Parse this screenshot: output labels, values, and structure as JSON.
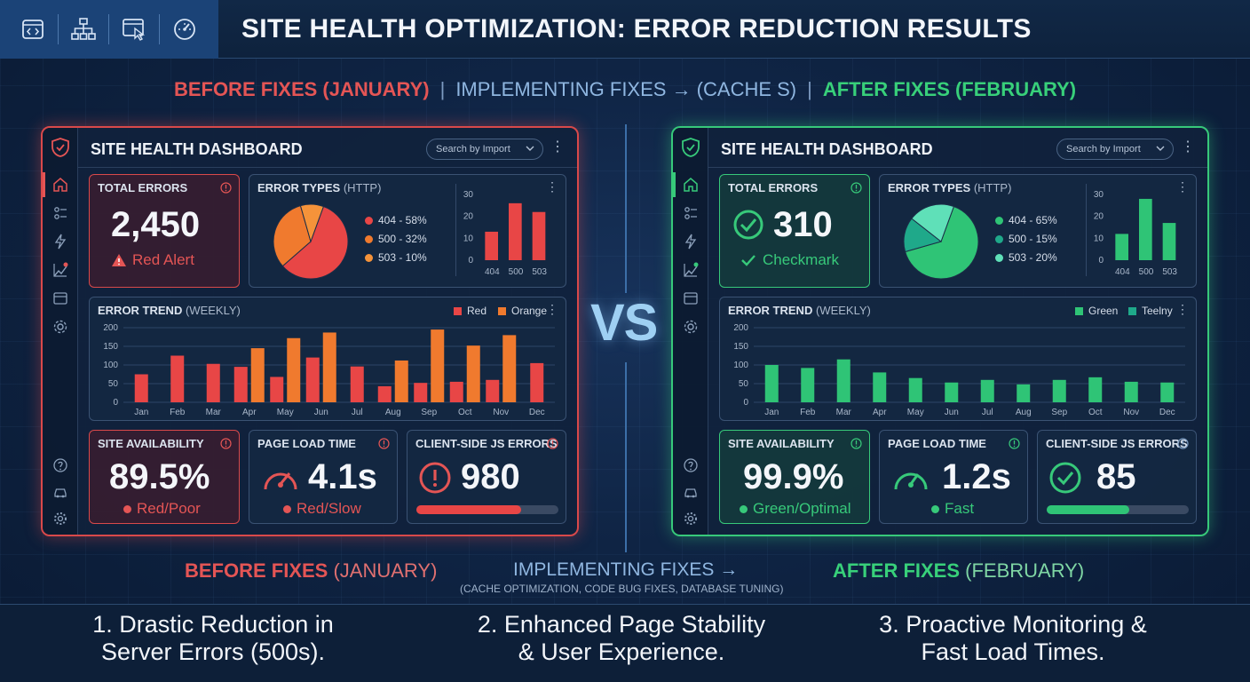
{
  "header": {
    "title": "SITE HEALTH OPTIMIZATION: ERROR REDUCTION RESULTS",
    "icons": [
      "code-window-icon",
      "sitemap-icon",
      "browser-cursor-icon",
      "speed-gauge-icon"
    ]
  },
  "subheader": {
    "before": "BEFORE FIXES (JANUARY)",
    "separator": "|",
    "middle": "IMPLEMENTING FIXES → (CACHE S)",
    "after": "AFTER FIXES (FEBRUARY)"
  },
  "colors": {
    "red": "#e45555",
    "orange": "#f07a2e",
    "green": "#2fc476",
    "teal": "#1fa98a",
    "mint": "#5fe0b8",
    "accent_blue": "#8fb6e0"
  },
  "before_panel": {
    "title": "SITE HEALTH DASHBOARD",
    "search_placeholder": "Search by Import",
    "total_errors": {
      "label": "TOTAL ERRORS",
      "value": "2,450",
      "status": "Red Alert"
    },
    "error_types": {
      "label": "ERROR TYPES",
      "label_suffix": "(HTTP)",
      "legend": [
        "404 - 58%",
        "500 - 32%",
        "503 - 10%"
      ]
    },
    "error_trend": {
      "label": "ERROR TREND",
      "label_suffix": "(WEEKLY)",
      "legend": [
        "Red",
        "Orange"
      ]
    },
    "site_availability": {
      "label": "SITE AVAILABILITY",
      "value": "89.5%",
      "status": "Red/Poor"
    },
    "page_load": {
      "label": "PAGE LOAD TIME",
      "value": "4.1s",
      "status": "Red/Slow"
    },
    "js_errors": {
      "label": "CLIENT-SIDE JS ERRORS",
      "value": "980",
      "progress": 0.74
    }
  },
  "after_panel": {
    "title": "SITE HEALTH DASHBOARD",
    "search_placeholder": "Search by Import",
    "total_errors": {
      "label": "TOTAL ERRORS",
      "value": "310",
      "status": "Checkmark"
    },
    "error_types": {
      "label": "ERROR TYPES",
      "label_suffix": "(HTTP)",
      "legend": [
        "404 - 65%",
        "500 - 15%",
        "503 - 20%"
      ]
    },
    "error_trend": {
      "label": "ERROR TREND",
      "label_suffix": "(WEEKLY)",
      "legend": [
        "Green",
        "Teelny"
      ]
    },
    "site_availability": {
      "label": "SITE AVAILABILITY",
      "value": "99.9%",
      "status": "Green/Optimal"
    },
    "page_load": {
      "label": "PAGE LOAD TIME",
      "value": "1.2s",
      "status": "Fast"
    },
    "js_errors": {
      "label": "CLIENT-SIDE JS ERRORS",
      "value": "85",
      "progress": 0.58
    }
  },
  "vs_label": "VS",
  "bottom_labels": {
    "before_bold": "BEFORE FIXES",
    "before_rest": " (JANUARY)",
    "middle": "IMPLEMENTING FIXES →",
    "middle_sub": "(CACHE OPTIMIZATION, CODE BUG FIXES, DATABASE TUNING)",
    "after_bold": "AFTER FIXES",
    "after_rest": " (FEBRUARY)"
  },
  "takeaways": [
    {
      "line1": "1. Drastic Reduction in",
      "line2": "Server Errors (500s)."
    },
    {
      "line1": "2. Enhanced Page Stability",
      "line2": "& User Experience."
    },
    {
      "line1": "3. Proactive Monitoring &",
      "line2": "Fast Load Times."
    }
  ],
  "chart_data": [
    {
      "type": "pie",
      "panel": "before",
      "categories": [
        "404",
        "500",
        "503"
      ],
      "values": [
        58,
        32,
        10
      ]
    },
    {
      "type": "bar",
      "panel": "before",
      "categories": [
        "404",
        "500",
        "503"
      ],
      "values": [
        13,
        26,
        22
      ],
      "ylim": [
        0,
        30
      ],
      "yticks": [
        0,
        10,
        20,
        30
      ]
    },
    {
      "type": "bar",
      "panel": "before",
      "categories": [
        "Jan",
        "Feb",
        "Mar",
        "Apr",
        "May",
        "Jun",
        "Jul",
        "Aug",
        "Sep",
        "Oct",
        "Nov",
        "Dec"
      ],
      "series": [
        {
          "name": "Red",
          "values": [
            75,
            125,
            103,
            95,
            68,
            120,
            96,
            43,
            52,
            55,
            60,
            105
          ]
        },
        {
          "name": "Orange",
          "values": [
            null,
            null,
            null,
            145,
            172,
            187,
            null,
            112,
            195,
            152,
            180,
            null
          ]
        }
      ],
      "ylim": [
        0,
        200
      ],
      "yticks": [
        0,
        50,
        100,
        150,
        200
      ]
    },
    {
      "type": "pie",
      "panel": "after",
      "categories": [
        "404",
        "500",
        "503"
      ],
      "values": [
        65,
        15,
        20
      ]
    },
    {
      "type": "bar",
      "panel": "after",
      "categories": [
        "404",
        "500",
        "503"
      ],
      "values": [
        12,
        28,
        17
      ],
      "ylim": [
        0,
        30
      ],
      "yticks": [
        0,
        10,
        20,
        30
      ]
    },
    {
      "type": "bar",
      "panel": "after",
      "categories": [
        "Jan",
        "Feb",
        "Mar",
        "Apr",
        "May",
        "Jun",
        "Jul",
        "Aug",
        "Sep",
        "Oct",
        "Nov",
        "Dec"
      ],
      "series": [
        {
          "name": "Green",
          "values": [
            100,
            92,
            115,
            80,
            65,
            53,
            60,
            48,
            60,
            67,
            55,
            53
          ]
        }
      ],
      "ylim": [
        0,
        200
      ],
      "yticks": [
        0,
        50,
        100,
        150,
        200
      ]
    }
  ]
}
